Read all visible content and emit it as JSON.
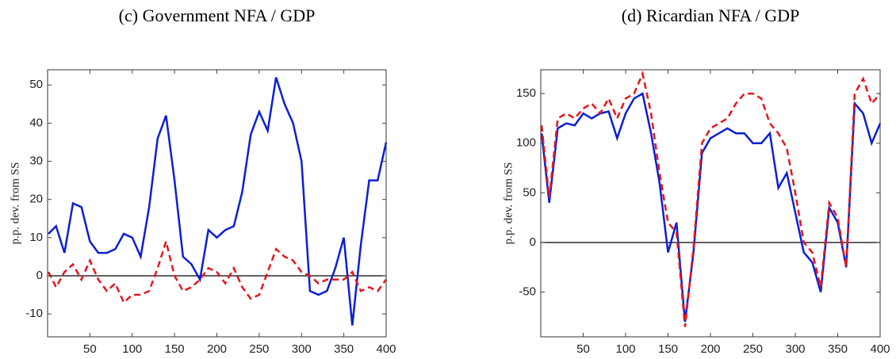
{
  "chart_data": [
    {
      "type": "line",
      "title": "(c) Government NFA / GDP",
      "ylabel": "p.p. dev. from SS",
      "x": [
        1,
        10,
        20,
        30,
        40,
        50,
        60,
        70,
        80,
        90,
        100,
        110,
        120,
        130,
        140,
        150,
        160,
        170,
        180,
        190,
        200,
        210,
        220,
        230,
        240,
        250,
        260,
        270,
        280,
        290,
        300,
        310,
        320,
        330,
        340,
        350,
        360,
        370,
        380,
        390,
        400
      ],
      "series": [
        {
          "color": "#0a1fd6",
          "style": "solid",
          "values": [
            11,
            13,
            6,
            19,
            18,
            9,
            6,
            6,
            7,
            11,
            10,
            5,
            18,
            36,
            42,
            25,
            5,
            3,
            -1,
            12,
            10,
            12,
            13,
            22,
            37,
            43,
            38,
            52,
            45,
            40,
            30,
            -4,
            -5,
            -4,
            2,
            10,
            -13,
            8,
            25,
            25,
            35
          ]
        },
        {
          "color": "#e8141c",
          "style": "dashed",
          "values": [
            1,
            -3,
            1,
            3,
            -1,
            4,
            -1,
            -4,
            -2,
            -7,
            -5,
            -5,
            -4,
            2,
            9,
            0,
            -4,
            -3,
            -1,
            2,
            1,
            -2,
            2,
            -3,
            -6,
            -5,
            1,
            7,
            5,
            4,
            1,
            0,
            -2,
            -1,
            -1,
            -1,
            1,
            -4,
            -3,
            -4,
            -1
          ]
        }
      ],
      "xlim": [
        0,
        400
      ],
      "xticks": [
        50,
        100,
        150,
        200,
        250,
        300,
        350,
        400
      ],
      "ylim": [
        -16,
        54
      ],
      "yticks": [
        -10,
        0,
        10,
        20,
        30,
        40,
        50
      ],
      "reference_line": 0
    },
    {
      "type": "line",
      "title": "(d) Ricardian NFA / GDP",
      "ylabel": "p.p. dev. from SS",
      "x": [
        1,
        10,
        20,
        30,
        40,
        50,
        60,
        70,
        80,
        90,
        100,
        110,
        120,
        130,
        140,
        150,
        160,
        170,
        180,
        190,
        200,
        210,
        220,
        230,
        240,
        250,
        260,
        270,
        280,
        290,
        300,
        310,
        320,
        330,
        340,
        350,
        360,
        370,
        380,
        390,
        400
      ],
      "series": [
        {
          "color": "#0a1fd6",
          "style": "solid",
          "values": [
            110,
            40,
            115,
            120,
            118,
            130,
            125,
            130,
            132,
            105,
            130,
            145,
            150,
            110,
            60,
            -10,
            20,
            -80,
            -10,
            90,
            105,
            110,
            115,
            110,
            110,
            100,
            100,
            110,
            55,
            70,
            30,
            -10,
            -20,
            -50,
            35,
            20,
            -25,
            140,
            130,
            100,
            120
          ]
        },
        {
          "color": "#e8141c",
          "style": "dashed",
          "values": [
            118,
            45,
            125,
            130,
            125,
            135,
            140,
            130,
            145,
            125,
            145,
            150,
            170,
            130,
            70,
            20,
            10,
            -85,
            -5,
            100,
            115,
            120,
            125,
            140,
            150,
            150,
            145,
            120,
            110,
            95,
            50,
            0,
            -10,
            -45,
            40,
            25,
            -25,
            150,
            165,
            140,
            150
          ]
        }
      ],
      "xlim": [
        0,
        400
      ],
      "xticks": [
        50,
        100,
        150,
        200,
        250,
        300,
        350,
        400
      ],
      "ylim": [
        -95,
        174
      ],
      "yticks": [
        -50,
        0,
        50,
        100,
        150
      ],
      "reference_line": 0
    }
  ]
}
